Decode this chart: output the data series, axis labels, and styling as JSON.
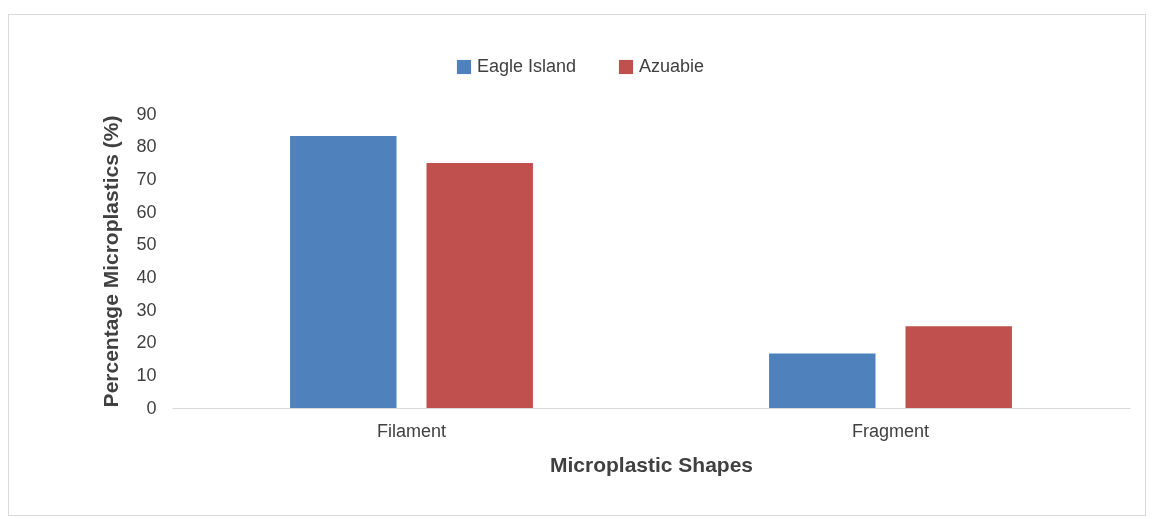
{
  "chart_data": {
    "type": "bar",
    "xlabel": "Microplastic Shapes",
    "ylabel": "Percentage Microplastics (%)",
    "categories": [
      "Filament",
      "Fragment"
    ],
    "series": [
      {
        "name": "Eagle Island",
        "color": "#4f81bd",
        "values": [
          83.3,
          16.7
        ]
      },
      {
        "name": "Azuabie",
        "color": "#c0504d",
        "values": [
          75,
          25
        ]
      }
    ],
    "ylim": [
      0,
      90
    ],
    "yticks": [
      0,
      10,
      20,
      30,
      40,
      50,
      60,
      70,
      80,
      90
    ],
    "legend": "top"
  }
}
